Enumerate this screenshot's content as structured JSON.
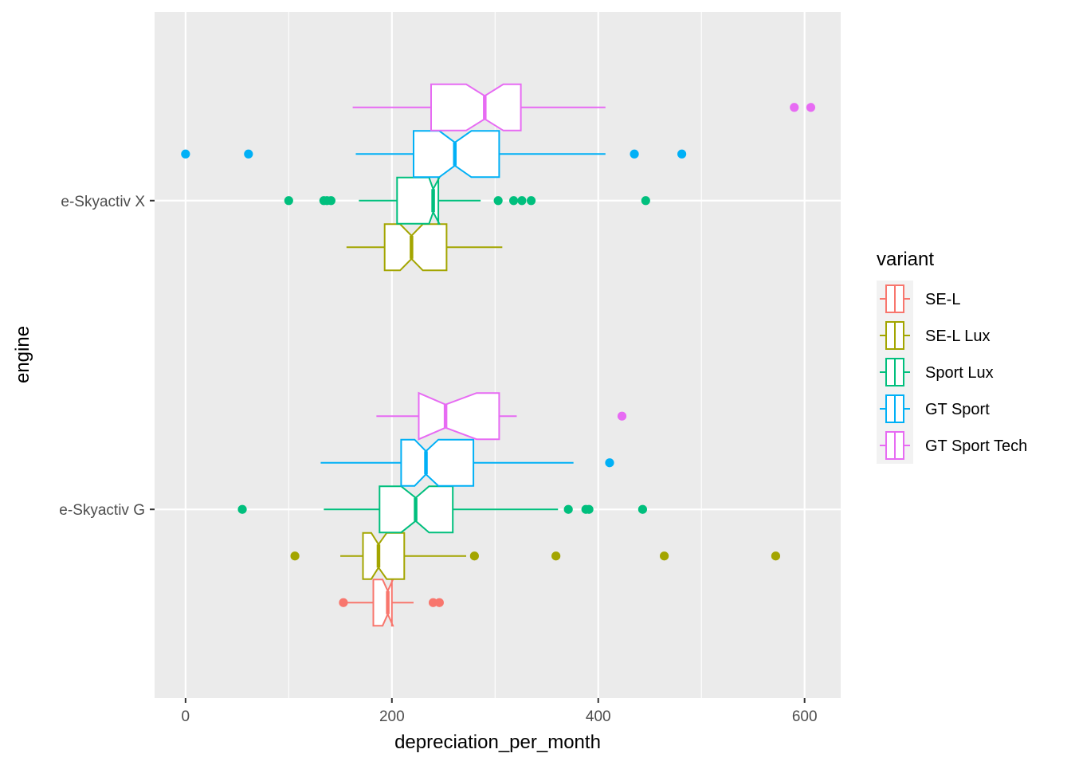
{
  "chart_data": {
    "type": "boxplot",
    "orientation": "horizontal",
    "notched": true,
    "xlabel": "depreciation_per_month",
    "ylabel": "engine",
    "xlim": [
      -30,
      635
    ],
    "x_ticks": [
      0,
      200,
      400,
      600
    ],
    "x_tick_labels": [
      "0",
      "200",
      "400",
      "600"
    ],
    "categories": [
      "e-Skyactiv G",
      "e-Skyactiv X"
    ],
    "grid": true,
    "legend": {
      "title": "variant",
      "position": "right",
      "items": [
        {
          "name": "SE-L",
          "color": "#F8766D"
        },
        {
          "name": "SE-L Lux",
          "color": "#A3A500"
        },
        {
          "name": "Sport Lux",
          "color": "#00BF7D"
        },
        {
          "name": "GT Sport",
          "color": "#00B0F6"
        },
        {
          "name": "GT Sport Tech",
          "color": "#E76BF3"
        }
      ]
    },
    "series": [
      {
        "category": "e-Skyactiv X",
        "variant": "SE-L Lux",
        "whisker_low": 156,
        "q1": 193,
        "median": 219,
        "q3": 253,
        "whisker_high": 307,
        "notch_low": 208,
        "notch_high": 230,
        "outliers": []
      },
      {
        "category": "e-Skyactiv X",
        "variant": "Sport Lux",
        "whisker_low": 168,
        "q1": 205,
        "median": 240,
        "q3": 245,
        "whisker_high": 286,
        "notch_low": 236,
        "notch_high": 246,
        "outliers": [
          100,
          134,
          137,
          141,
          303,
          318,
          326,
          335,
          446
        ]
      },
      {
        "category": "e-Skyactiv X",
        "variant": "GT Sport",
        "whisker_low": 165,
        "q1": 221,
        "median": 261,
        "q3": 304,
        "whisker_high": 407,
        "notch_low": 246,
        "notch_high": 277,
        "outliers": [
          0,
          61,
          435,
          481
        ]
      },
      {
        "category": "e-Skyactiv X",
        "variant": "GT Sport Tech",
        "whisker_low": 162,
        "q1": 238,
        "median": 290,
        "q3": 325,
        "whisker_high": 407,
        "notch_low": 272,
        "notch_high": 308,
        "outliers": [
          590,
          606
        ]
      },
      {
        "category": "e-Skyactiv G",
        "variant": "SE-L",
        "whisker_low": 153,
        "q1": 182,
        "median": 196,
        "q3": 200,
        "whisker_high": 221,
        "notch_low": 191,
        "notch_high": 201,
        "outliers": [
          153,
          240,
          246
        ]
      },
      {
        "category": "e-Skyactiv G",
        "variant": "SE-L Lux",
        "whisker_low": 150,
        "q1": 172,
        "median": 187,
        "q3": 212,
        "whisker_high": 272,
        "notch_low": 180,
        "notch_high": 195,
        "outliers": [
          106,
          280,
          359,
          464,
          572
        ]
      },
      {
        "category": "e-Skyactiv G",
        "variant": "Sport Lux",
        "whisker_low": 134,
        "q1": 188,
        "median": 223,
        "q3": 259,
        "whisker_high": 361,
        "notch_low": 209,
        "notch_high": 236,
        "outliers": [
          55,
          371,
          388,
          391,
          443
        ]
      },
      {
        "category": "e-Skyactiv G",
        "variant": "GT Sport",
        "whisker_low": 131,
        "q1": 209,
        "median": 233,
        "q3": 279,
        "whisker_high": 376,
        "notch_low": 222,
        "notch_high": 245,
        "outliers": [
          411
        ]
      },
      {
        "category": "e-Skyactiv G",
        "variant": "GT Sport Tech",
        "whisker_low": 185,
        "q1": 226,
        "median": 252,
        "q3": 304,
        "whisker_high": 321,
        "notch_low": 226,
        "notch_high": 282,
        "outliers": [
          423
        ]
      }
    ]
  }
}
